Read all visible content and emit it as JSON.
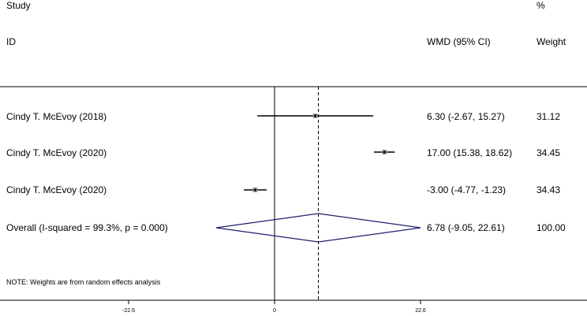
{
  "header": {
    "col1_line1": "Study",
    "col1_line2": "ID",
    "col2_line2": "WMD (95% CI)",
    "col3_line1": "%",
    "col3_line2": "Weight"
  },
  "note": "NOTE: Weights are from random effects analysis",
  "chart_data": {
    "type": "forest",
    "x_ticks": [
      "-22.6",
      "0",
      "22.6"
    ],
    "xlim": [
      -22.6,
      22.6
    ],
    "null_line": 0,
    "studies": [
      {
        "label": "Cindy T. McEvoy (2018)",
        "est": 6.3,
        "lo": -2.67,
        "hi": 15.27,
        "ci_text": "6.30 (-2.67, 15.27)",
        "weight": "31.12"
      },
      {
        "label": "Cindy T. McEvoy (2020)",
        "est": 17.0,
        "lo": 15.38,
        "hi": 18.62,
        "ci_text": "17.00 (15.38, 18.62)",
        "weight": "34.45"
      },
      {
        "label": "Cindy T. McEvoy (2020)",
        "est": -3.0,
        "lo": -4.77,
        "hi": -1.23,
        "ci_text": "-3.00 (-4.77, -1.23)",
        "weight": "34.43"
      }
    ],
    "overall": {
      "label": "Overall  (I-squared = 99.3%, p = 0.000)",
      "est": 6.78,
      "lo": -9.05,
      "hi": 22.61,
      "ci_text": "6.78 (-9.05, 22.61)",
      "weight": "100.00"
    },
    "colors": {
      "diamond": "#1f1f6e",
      "lines": "#000000"
    }
  }
}
